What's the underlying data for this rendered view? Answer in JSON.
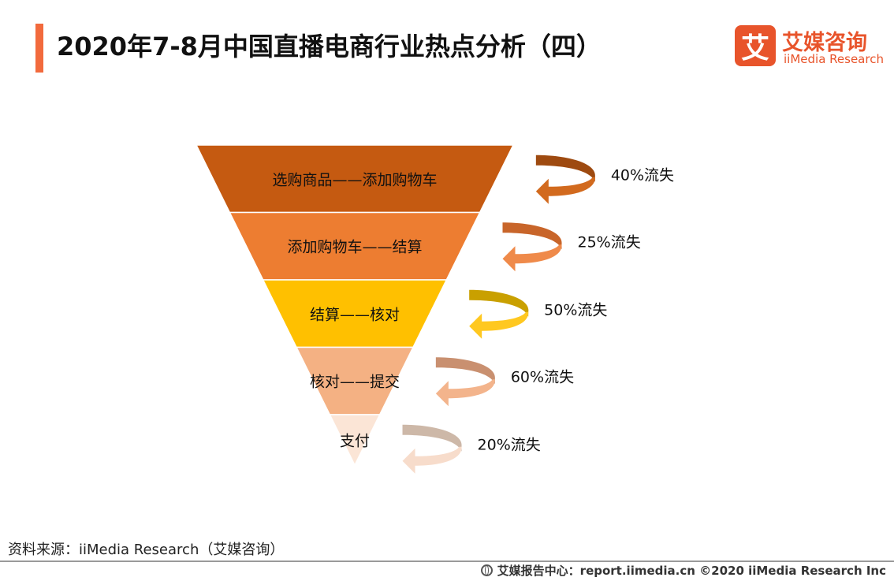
{
  "header": {
    "title": "2020年7-8月中国直播电商行业热点分析（四）",
    "accent_color": "#f26a3d"
  },
  "logo": {
    "mark": "艾",
    "cn": "艾媒咨询",
    "en": "iiMedia Research",
    "color": "#e8542b"
  },
  "funnel": {
    "stages": [
      {
        "label": "选购商品——添加购物车",
        "loss": "40%流失",
        "loss_value": 40,
        "color": "#c55a11"
      },
      {
        "label": "添加购物车——结算",
        "loss": "25%流失",
        "loss_value": 25,
        "color": "#ed7d31"
      },
      {
        "label": "结算——核对",
        "loss": "50%流失",
        "loss_value": 50,
        "color": "#ffc000"
      },
      {
        "label": "核对——提交",
        "loss": "60%流失",
        "loss_value": 60,
        "color": "#f4b183"
      },
      {
        "label": "支付",
        "loss": "20%流失",
        "loss_value": 20,
        "color": "#fbe5d6"
      }
    ],
    "arrow_colors": [
      {
        "dark": "#9e4a10",
        "light": "#d26a1e"
      },
      {
        "dark": "#c8652a",
        "light": "#ef8a4a"
      },
      {
        "dark": "#c9a000",
        "light": "#ffc820"
      },
      {
        "dark": "#c99070",
        "light": "#f3b48c"
      },
      {
        "dark": "#cdb8a8",
        "light": "#f7dccb"
      }
    ]
  },
  "source": "资料来源：iiMedia Research（艾媒咨询）",
  "footer": {
    "text": "艾媒报告中心：report.iimedia.cn  ©2020  iiMedia Research  Inc",
    "icon": "globe-icon"
  }
}
